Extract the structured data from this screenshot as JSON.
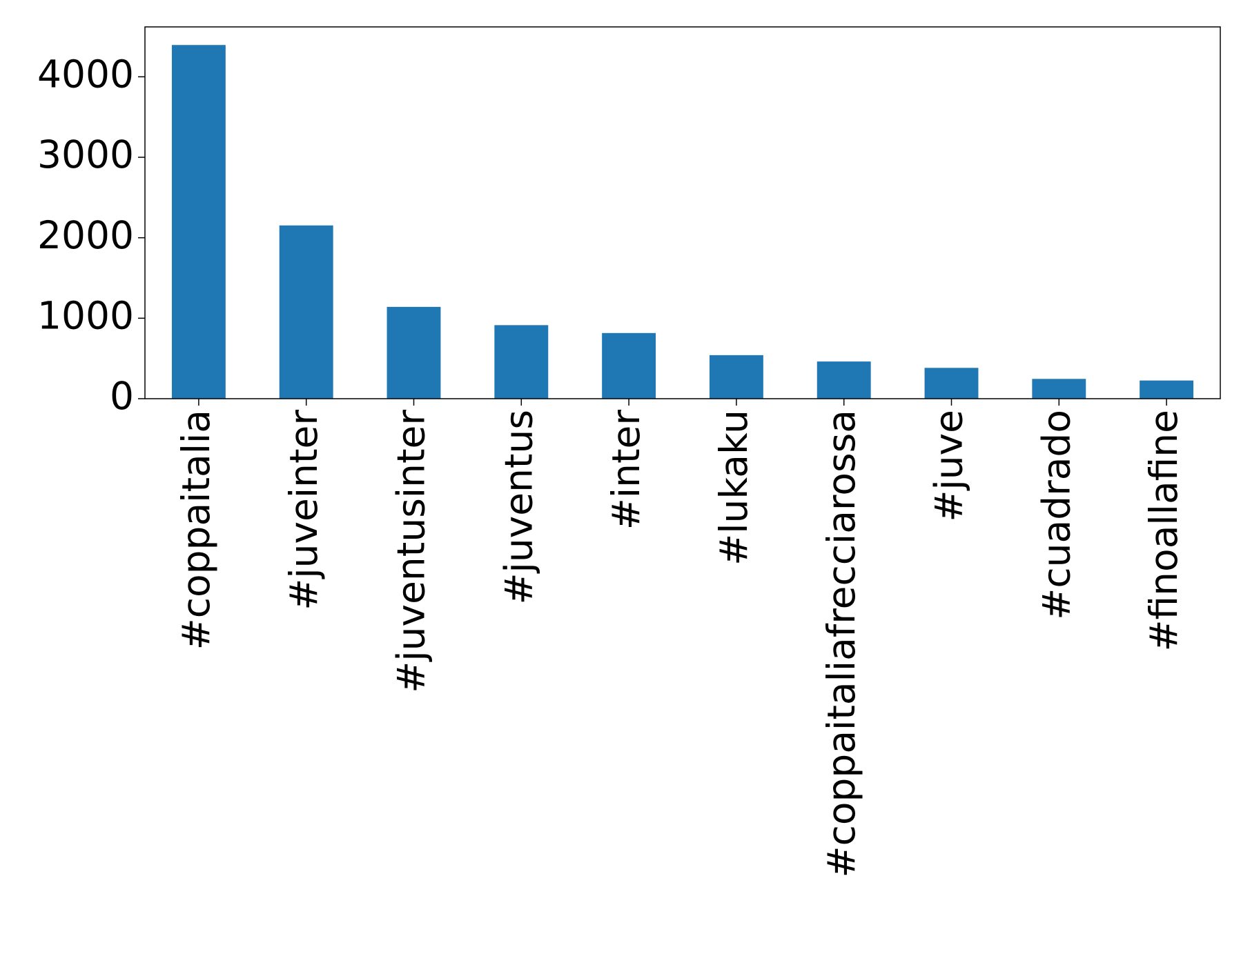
{
  "chart_data": {
    "type": "bar",
    "categories": [
      "#coppaitalia",
      "#juveinter",
      "#juventusinter",
      "#juventus",
      "#inter",
      "#lukaku",
      "#coppaitaliafrecciarossa",
      "#juve",
      "#cuadrado",
      "#finoallafine"
    ],
    "values": [
      4395,
      2153,
      1141,
      914,
      816,
      541,
      462,
      383,
      246,
      226
    ],
    "color": "#1f77b4",
    "ylim": [
      0,
      4620
    ],
    "yticks": [
      0,
      1000,
      2000,
      3000,
      4000
    ],
    "grid": false
  }
}
